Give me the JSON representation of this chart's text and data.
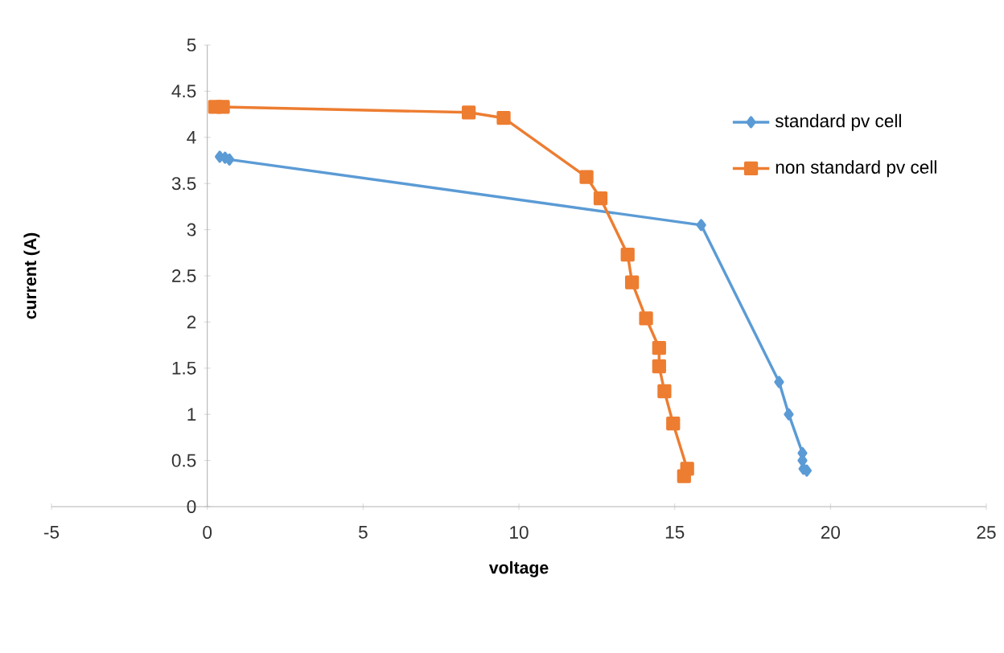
{
  "chart_data": {
    "type": "line",
    "xlabel": "voltage",
    "ylabel": "current (A)",
    "xlim": [
      -5,
      25
    ],
    "xticks": [
      -5,
      0,
      5,
      10,
      15,
      20,
      25
    ],
    "ylim": [
      0,
      5
    ],
    "yticks": [
      0,
      0.5,
      1,
      1.5,
      2,
      2.5,
      3,
      3.5,
      4,
      4.5,
      5
    ],
    "grid": false,
    "legend": "top right",
    "line_style": "solid",
    "series": [
      {
        "name": "standard pv cell",
        "color": "#5b9bd5",
        "marker": "diamond",
        "x": [
          0.4,
          0.57,
          0.71,
          15.85,
          18.35,
          18.66,
          19.1,
          19.1,
          19.13,
          19.24
        ],
        "values": [
          3.79,
          3.78,
          3.76,
          3.05,
          1.35,
          1.0,
          0.58,
          0.5,
          0.41,
          0.39
        ]
      },
      {
        "name": "non standard pv cell",
        "color": "#ed7d31",
        "marker": "square",
        "x": [
          0.25,
          0.5,
          8.39,
          9.51,
          12.17,
          12.62,
          13.49,
          13.63,
          14.08,
          14.5,
          14.5,
          14.67,
          14.95,
          15.4,
          15.3
        ],
        "values": [
          4.33,
          4.33,
          4.27,
          4.21,
          3.57,
          3.34,
          2.73,
          2.43,
          2.04,
          1.72,
          1.52,
          1.25,
          0.9,
          0.41,
          0.33
        ]
      }
    ]
  }
}
